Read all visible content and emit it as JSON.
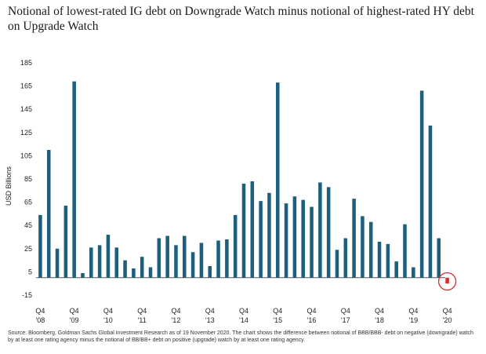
{
  "chart_data": {
    "type": "bar",
    "title": "Notional of lowest-rated IG debt on Downgrade Watch minus notional of highest-rated HY debt on Upgrade Watch",
    "ylabel": "USD Billions",
    "xlabel": "",
    "ylim": [
      -15,
      185
    ],
    "yticks": [
      185,
      165,
      145,
      125,
      105,
      85,
      65,
      45,
      25,
      5,
      -15
    ],
    "grid": false,
    "legend": "none",
    "bar_color": "#1f5f7e",
    "highlight_color": "#d32f2f",
    "highlight_index": 48,
    "xtick_labels": [
      {
        "index": 0,
        "q": "Q4",
        "yr": "'08"
      },
      {
        "index": 4,
        "q": "Q4",
        "yr": "'09"
      },
      {
        "index": 8,
        "q": "Q4",
        "yr": "'10"
      },
      {
        "index": 12,
        "q": "Q4",
        "yr": "'11"
      },
      {
        "index": 16,
        "q": "Q4",
        "yr": "'12"
      },
      {
        "index": 20,
        "q": "Q4",
        "yr": "'13"
      },
      {
        "index": 24,
        "q": "Q4",
        "yr": "'14"
      },
      {
        "index": 28,
        "q": "Q4",
        "yr": "'15"
      },
      {
        "index": 32,
        "q": "Q4",
        "yr": "'16"
      },
      {
        "index": 36,
        "q": "Q4",
        "yr": "'17"
      },
      {
        "index": 40,
        "q": "Q4",
        "yr": "'18"
      },
      {
        "index": 44,
        "q": "Q4",
        "yr": "'19"
      },
      {
        "index": 48,
        "q": "Q4",
        "yr": "'20"
      }
    ],
    "values": [
      54,
      110,
      25,
      62,
      169,
      4,
      26,
      28,
      37,
      26,
      15,
      8,
      18,
      9,
      34,
      36,
      28,
      36,
      22,
      30,
      10,
      32,
      33,
      54,
      81,
      83,
      66,
      73,
      168,
      64,
      70,
      67,
      61,
      82,
      78,
      24,
      34,
      68,
      53,
      48,
      31,
      29,
      14,
      46,
      9,
      161,
      131,
      34,
      -5
    ]
  },
  "source_text": "Source: Bloomberg, Goldman Sachs Global Investment Research as of 19 November 2020. The chart shows the difference between notional of BBB/BBB- debt on negative (downgrade) watch by at least one rating agency minus the notional of BB/BB+ debt on positive (upgrade) watch by at least one rating agency."
}
